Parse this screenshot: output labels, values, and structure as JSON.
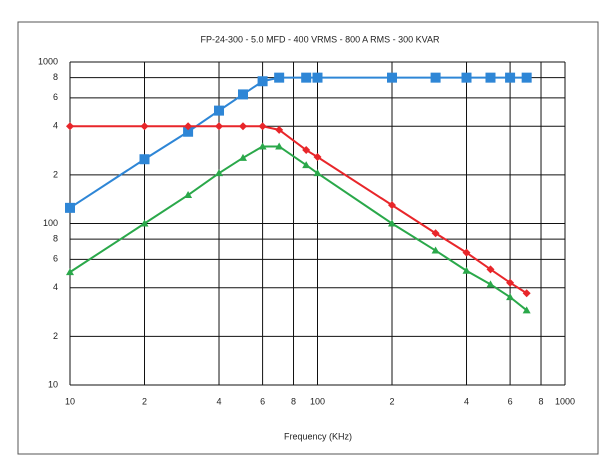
{
  "chart_data": {
    "type": "line",
    "title": "FP-24-300 - 5.0 MFD - 400 VRMS - 800 A RMS - 300 KVAR",
    "x_label": "Frequency (KHz)",
    "x": [
      10,
      20,
      30,
      40,
      50,
      60,
      70,
      90,
      100,
      200,
      300,
      400,
      500,
      600,
      700
    ],
    "series": [
      {
        "color": "#2e86d6",
        "marker": "square",
        "values": [
          125,
          250,
          370,
          500,
          630,
          760,
          800,
          800,
          800,
          800,
          800,
          800,
          800,
          800,
          800
        ]
      },
      {
        "color": "#e8262a",
        "marker": "diamond",
        "values": [
          400,
          400,
          400,
          400,
          400,
          400,
          380,
          285,
          258,
          130,
          87,
          66,
          52,
          43,
          37
        ]
      },
      {
        "color": "#2aa84a",
        "marker": "triangle",
        "values": [
          50,
          100,
          150,
          205,
          255,
          300,
          300,
          230,
          205,
          100,
          68,
          51,
          42,
          35,
          29
        ]
      }
    ],
    "xscale": "log",
    "yscale": "log",
    "xlim": [
      10,
      1000
    ],
    "ylim": [
      10,
      1000
    ],
    "xticks": [
      10,
      {
        "value": 20,
        "label": "2"
      },
      {
        "value": 40,
        "label": "4"
      },
      {
        "value": 60,
        "label": "6"
      },
      {
        "value": 80,
        "label": "8"
      },
      100,
      {
        "value": 200,
        "label": "2"
      },
      {
        "value": 400,
        "label": "4"
      },
      {
        "value": 600,
        "label": "6"
      },
      {
        "value": 800,
        "label": "8"
      },
      1000
    ],
    "yticks": [
      10,
      {
        "value": 20,
        "label": "2"
      },
      {
        "value": 40,
        "label": "4"
      },
      {
        "value": 60,
        "label": "6"
      },
      {
        "value": 80,
        "label": "8"
      },
      100,
      {
        "value": 200,
        "label": "2"
      },
      {
        "value": 400,
        "label": "4"
      },
      {
        "value": 600,
        "label": "6"
      },
      {
        "value": 800,
        "label": "8"
      },
      1000
    ],
    "grid": true
  }
}
